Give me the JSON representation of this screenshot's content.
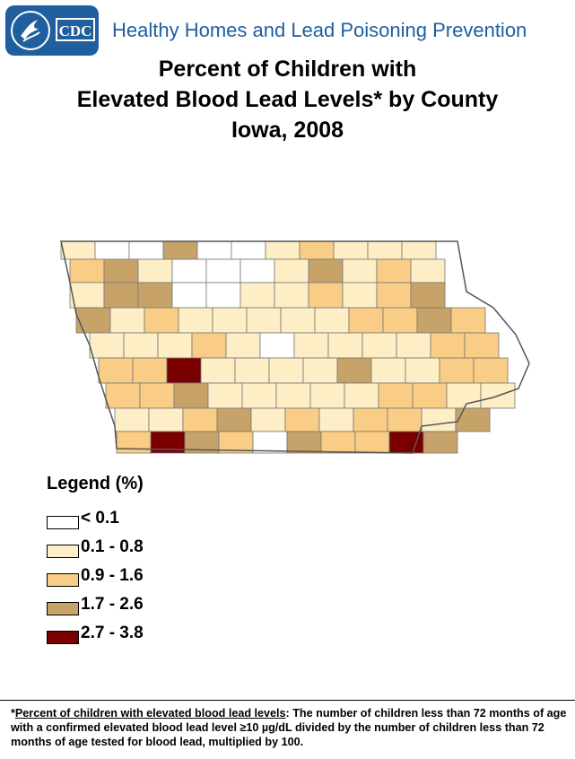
{
  "header": {
    "logo_text": "CDC",
    "program_title": "Healthy Homes and Lead Poisoning Prevention"
  },
  "title": {
    "line1": "Percent of Children with",
    "line2": "Elevated Blood Lead Levels* by County",
    "line3": "Iowa, 2008"
  },
  "legend": {
    "title": "Legend (%)",
    "items": [
      {
        "label": "< 0.1",
        "color": "#ffffff"
      },
      {
        "label": "0.1 - 0.8",
        "color": "#fdeec5"
      },
      {
        "label": "0.9 - 1.6",
        "color": "#f9cd85"
      },
      {
        "label": "1.7 - 2.6",
        "color": "#c7a36a"
      },
      {
        "label": "2.7 - 3.8",
        "color": "#7a0000"
      }
    ]
  },
  "map": {
    "state": "Iowa",
    "county_class_rows": [
      [
        1,
        0,
        0,
        3,
        0,
        0,
        1,
        2,
        1,
        1,
        1
      ],
      [
        2,
        3,
        1,
        0,
        0,
        0,
        1,
        3,
        1,
        2,
        1
      ],
      [
        1,
        3,
        3,
        0,
        0,
        1,
        1,
        2,
        1,
        2,
        3
      ],
      [
        3,
        1,
        2,
        1,
        1,
        1,
        1,
        1,
        2,
        2,
        3,
        2
      ],
      [
        1,
        1,
        1,
        2,
        1,
        0,
        1,
        1,
        1,
        1,
        2,
        2
      ],
      [
        2,
        2,
        4,
        1,
        1,
        1,
        1,
        3,
        1,
        1,
        2,
        2
      ],
      [
        2,
        2,
        3,
        1,
        1,
        1,
        1,
        1,
        2,
        2,
        1,
        1
      ],
      [
        1,
        1,
        2,
        3,
        1,
        2,
        1,
        2,
        2,
        1,
        3
      ],
      [
        2,
        4,
        3,
        2,
        0,
        3,
        2,
        2,
        4,
        3
      ]
    ]
  },
  "footnote": {
    "term": "Percent of children with elevated blood lead levels",
    "body": ": The number of children less than 72 months of age with a confirmed elevated blood lead level ≥10 µg/dL divided by the number of children less than 72 months of age tested for blood lead, multiplied by 100."
  }
}
